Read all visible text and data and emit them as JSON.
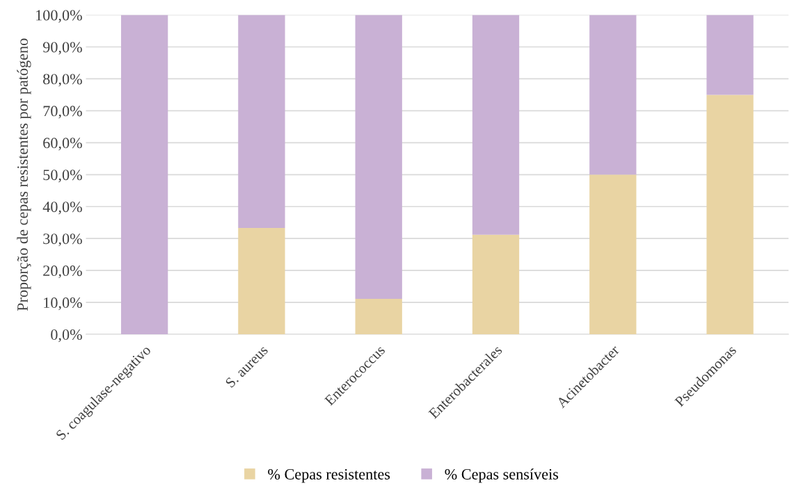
{
  "chart_data": {
    "type": "bar",
    "stacked": true,
    "ylabel": "Proporção de cepas resistentes por patógeno",
    "categories": [
      "S. coagulase-negativo",
      "S. aureus",
      "Enterococcus",
      "Enterobacterales",
      "Acinetobacter",
      "Pseudomonas"
    ],
    "series": [
      {
        "name": "% Cepas resistentes",
        "color": "#e9d4a3",
        "values": [
          0,
          33.3,
          11.1,
          31.2,
          50,
          75
        ]
      },
      {
        "name": "% Cepas sensíveis",
        "color": "#c9b1d5",
        "values": [
          100,
          66.7,
          88.9,
          68.8,
          50,
          25
        ]
      }
    ],
    "ylim": [
      0,
      100
    ],
    "yticks": [
      {
        "value": 0,
        "label": "0,0%"
      },
      {
        "value": 10,
        "label": "10,0%"
      },
      {
        "value": 20,
        "label": "20,0%"
      },
      {
        "value": 30,
        "label": "30,0%"
      },
      {
        "value": 40,
        "label": "40,0%"
      },
      {
        "value": 50,
        "label": "50,0%"
      },
      {
        "value": 60,
        "label": "60,0%"
      },
      {
        "value": 70,
        "label": "70,0%"
      },
      {
        "value": 80,
        "label": "80,0%"
      },
      {
        "value": 90,
        "label": "90,0%"
      },
      {
        "value": 100,
        "label": "100,0%"
      }
    ],
    "grid": "y",
    "legend": "bottom"
  }
}
